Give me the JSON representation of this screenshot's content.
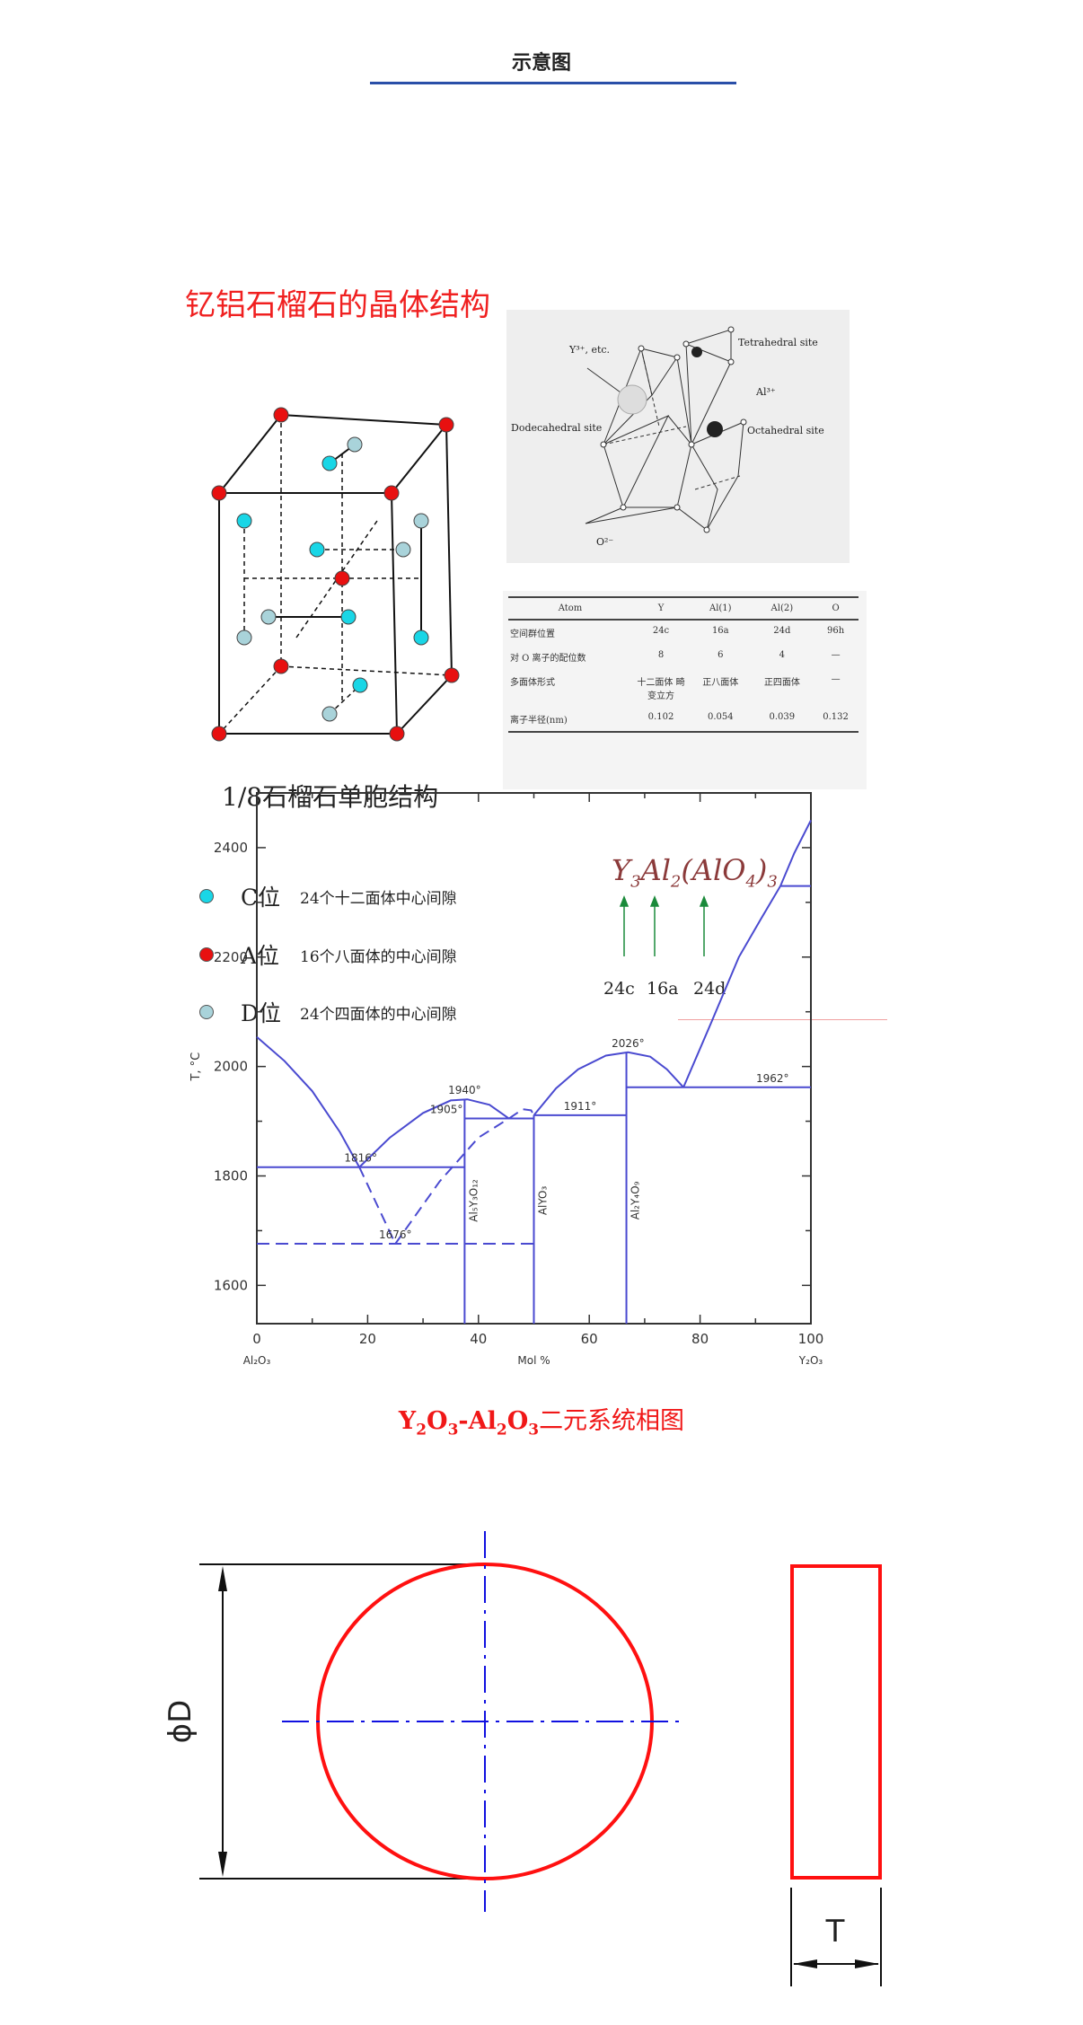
{
  "header": {
    "title": "示意图"
  },
  "crystal": {
    "title": "钇铝石榴石的晶体结构",
    "cube_caption": "1/8石榴石单胞结构",
    "legend": [
      {
        "site": "C位",
        "desc": "24个十二面体中心间隙",
        "color": "#19d6e6"
      },
      {
        "site": "A位",
        "desc": "16个八面体的中心间隙",
        "color": "#e81010"
      },
      {
        "site": "D位",
        "desc": "24个四面体的中心间隙",
        "color": "#a9d3da"
      }
    ],
    "structure_labels": {
      "y": "Y³⁺, etc.",
      "tetra": "Tetrahedral site",
      "al": "Al³⁺",
      "dodeca": "Dodecahedral site",
      "octa": "Octahedral site",
      "o": "O²⁻"
    },
    "table": {
      "headers": [
        "Atom",
        "Y",
        "Al(1)",
        "Al(2)",
        "O"
      ],
      "rows": [
        [
          "空间群位置",
          "24c",
          "16a",
          "24d",
          "96h"
        ],
        [
          "对 O 离子的配位数",
          "8",
          "6",
          "4",
          "—"
        ],
        [
          "多面体形式",
          "十二面体 畸变立方",
          "正八面体",
          "正四面体",
          "—"
        ],
        [
          "离子半径(nm)",
          "0.102",
          "0.054",
          "0.039",
          "0.132"
        ]
      ]
    },
    "formula": {
      "y": "Y",
      "y_sub": "3",
      "al": "Al",
      "al_sub": "2",
      "open": "(AlO",
      "o_sub": "4",
      "close": ")",
      "close_sub": "3"
    },
    "positions": [
      "24c",
      "16a",
      "24d"
    ]
  },
  "chart_data": {
    "type": "line",
    "title": "",
    "xlabel": "Mol %",
    "ylabel": "T, °C",
    "x_end_labels": [
      "Al₂O₃",
      "Y₂O₃"
    ],
    "xlim": [
      0,
      100
    ],
    "ylim": [
      1530,
      2500
    ],
    "xticks": [
      0,
      20,
      40,
      60,
      80,
      100
    ],
    "yticks": [
      1600,
      1800,
      2000,
      2200,
      2400
    ],
    "color": "#4a4ad0",
    "solid_curves": [
      [
        [
          0,
          2054
        ],
        [
          5,
          2010
        ],
        [
          10,
          1955
        ],
        [
          15,
          1880
        ],
        [
          18.5,
          1816
        ]
      ],
      [
        [
          18.5,
          1816
        ],
        [
          24,
          1870
        ],
        [
          30,
          1915
        ],
        [
          35,
          1938
        ],
        [
          38,
          1940
        ],
        [
          42,
          1930
        ],
        [
          45.5,
          1905
        ]
      ],
      [
        [
          50,
          1911
        ],
        [
          54,
          1960
        ],
        [
          58,
          1995
        ],
        [
          63,
          2020
        ],
        [
          67,
          2026
        ],
        [
          71,
          2018
        ],
        [
          74,
          1995
        ],
        [
          77,
          1962
        ]
      ],
      [
        [
          77,
          1962
        ],
        [
          82,
          2080
        ],
        [
          87,
          2200
        ],
        [
          91,
          2270
        ],
        [
          94.5,
          2330
        ],
        [
          97,
          2390
        ],
        [
          100,
          2450
        ]
      ]
    ],
    "dashed_curves": [
      [
        [
          18.5,
          1816
        ],
        [
          25,
          1676
        ]
      ],
      [
        [
          25,
          1676
        ],
        [
          33,
          1790
        ],
        [
          40,
          1870
        ],
        [
          45.5,
          1905
        ]
      ],
      [
        [
          45.5,
          1905
        ],
        [
          48,
          1922
        ],
        [
          49.5,
          1920
        ],
        [
          50,
          1911
        ]
      ]
    ],
    "isotherms": [
      {
        "t": 1816,
        "x": [
          0,
          37.5
        ],
        "label": "1816°",
        "dashed": false
      },
      {
        "t": 1905,
        "x": [
          37.5,
          50
        ],
        "label": "1905°",
        "dashed": false
      },
      {
        "t": 1911,
        "x": [
          50,
          66.7
        ],
        "label": "1911°",
        "dashed": false
      },
      {
        "t": 1962,
        "x": [
          66.7,
          100
        ],
        "label": "1962°",
        "dashed": false
      },
      {
        "t": 2330,
        "x": [
          94.5,
          100
        ],
        "label": "",
        "dashed": false
      },
      {
        "t": 1676,
        "x": [
          0,
          50
        ],
        "label": "1676°",
        "dashed": true
      }
    ],
    "peak_labels": [
      {
        "x": 37.5,
        "t": 1940,
        "label": "1940°"
      },
      {
        "x": 67,
        "t": 2026,
        "label": "2026°"
      }
    ],
    "compounds": [
      {
        "x": 37.5,
        "t": 1940,
        "label": "Al₅Y₃O₁₂"
      },
      {
        "x": 50,
        "t": 1911,
        "label": "AlYO₃"
      },
      {
        "x": 66.7,
        "t": 2026,
        "label": "Al₂Y₄O₉"
      }
    ]
  },
  "chart_caption": {
    "a": "Y",
    "a_sub": "2",
    "b": "O",
    "b_sub": "3",
    "dash": "-Al",
    "c_sub": "2",
    "d": "O",
    "d_sub": "3",
    "rest": "二元系统相图"
  },
  "drawing": {
    "diameter_label": "ϕD",
    "thickness_label": "T",
    "outline_color": "#ff1010",
    "centerline_color": "#1010e0"
  }
}
